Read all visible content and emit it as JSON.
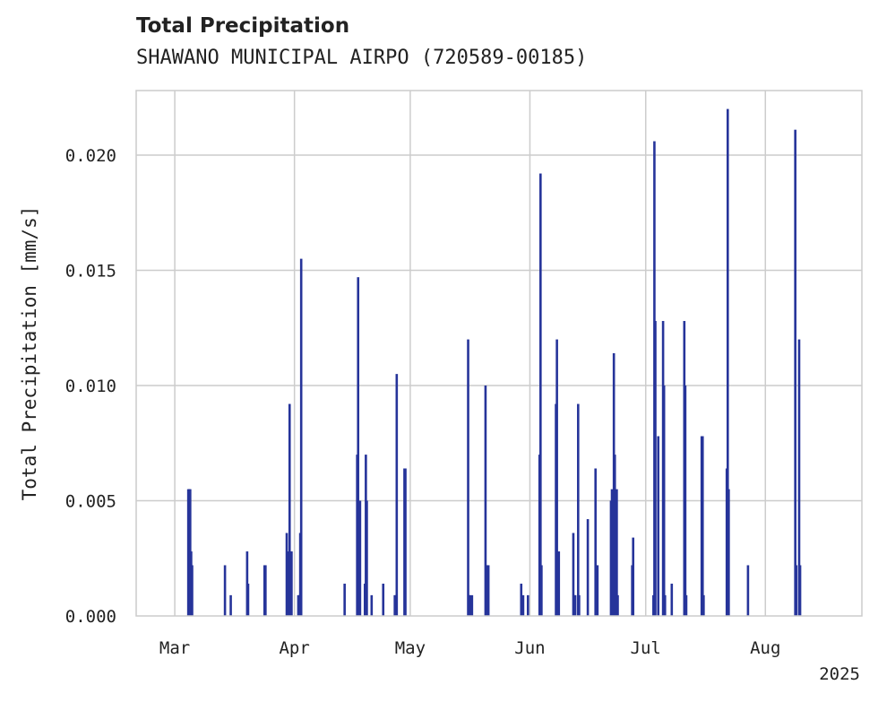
{
  "chart_data": {
    "type": "bar",
    "title": "Total Precipitation",
    "subtitle": "SHAWANO MUNICIPAL AIRPO (720589-00185)",
    "xlabel": "",
    "ylabel": "Total Precipitation [mm/s]",
    "xlim": [
      "2025-02-19",
      "2025-08-26"
    ],
    "ylim": [
      0,
      0.0228
    ],
    "x_ticks": [
      {
        "date": "2025-03-01",
        "label": "Mar"
      },
      {
        "date": "2025-04-01",
        "label": "Apr"
      },
      {
        "date": "2025-05-01",
        "label": "May"
      },
      {
        "date": "2025-06-01",
        "label": "Jun"
      },
      {
        "date": "2025-07-01",
        "label": "Jul"
      },
      {
        "date": "2025-08-01",
        "label": "Aug"
      }
    ],
    "x_offset_label": "2025",
    "y_ticks": [
      {
        "value": 0,
        "label": "0.000"
      },
      {
        "value": 0.005,
        "label": "0.005"
      },
      {
        "value": 0.01,
        "label": "0.010"
      },
      {
        "value": 0.015,
        "label": "0.015"
      },
      {
        "value": 0.02,
        "label": "0.020"
      }
    ],
    "grid": true,
    "bar_color": "#26349a",
    "series": [
      {
        "x": [
          "2025-03-04T12:00",
          "2025-03-04T18:00",
          "2025-03-05T00:00",
          "2025-03-05T06:00",
          "2025-03-05T12:00",
          "2025-03-14T00:00",
          "2025-03-15T12:00",
          "2025-03-19T18:00",
          "2025-03-20T00:00",
          "2025-03-24T06:00",
          "2025-03-24T12:00",
          "2025-03-30T00:00",
          "2025-03-30T06:00",
          "2025-03-30T18:00",
          "2025-03-31T00:00",
          "2025-03-31T06:00",
          "2025-04-02T00:00",
          "2025-04-02T06:00",
          "2025-04-02T12:00",
          "2025-04-02T18:00",
          "2025-04-14T00:00",
          "2025-04-17T06:00",
          "2025-04-17T12:00",
          "2025-04-17T18:00",
          "2025-04-18T00:00",
          "2025-04-19T06:00",
          "2025-04-19T12:00",
          "2025-04-19T18:00",
          "2025-04-21T00:00",
          "2025-04-24T00:00",
          "2025-04-27T00:00",
          "2025-04-27T06:00",
          "2025-04-27T12:00",
          "2025-04-29T12:00",
          "2025-04-29T18:00",
          "2025-05-16T00:00",
          "2025-05-16T06:00",
          "2025-05-16T12:00",
          "2025-05-17T00:00",
          "2025-05-20T12:00",
          "2025-05-20T18:00",
          "2025-05-21T00:00",
          "2025-05-21T06:00",
          "2025-05-29T18:00",
          "2025-05-30T06:00",
          "2025-05-31T12:00",
          "2025-06-03T12:00",
          "2025-06-03T18:00",
          "2025-06-04T00:00",
          "2025-06-07T18:00",
          "2025-06-08T00:00",
          "2025-06-08T06:00",
          "2025-06-08T12:00",
          "2025-06-12T06:00",
          "2025-06-12T12:00",
          "2025-06-12T18:00",
          "2025-06-13T12:00",
          "2025-06-13T18:00",
          "2025-06-16T00:00",
          "2025-06-18T00:00",
          "2025-06-18T06:00",
          "2025-06-18T12:00",
          "2025-06-22T00:00",
          "2025-06-22T06:00",
          "2025-06-22T12:00",
          "2025-06-22T18:00",
          "2025-06-23T00:00",
          "2025-06-23T06:00",
          "2025-06-23T12:00",
          "2025-06-23T18:00",
          "2025-06-27T12:00",
          "2025-06-27T18:00",
          "2025-07-03T00:00",
          "2025-07-03T06:00",
          "2025-07-03T12:00",
          "2025-07-04T06:00",
          "2025-07-05T12:00",
          "2025-07-05T18:00",
          "2025-07-06T00:00",
          "2025-07-07T18:00",
          "2025-07-11T00:00",
          "2025-07-11T06:00",
          "2025-07-11T12:00",
          "2025-07-15T12:00",
          "2025-07-15T18:00",
          "2025-07-16T00:00",
          "2025-07-22T00:00",
          "2025-07-22T06:00",
          "2025-07-22T12:00",
          "2025-07-27T12:00",
          "2025-08-08T18:00",
          "2025-08-09T00:00",
          "2025-08-09T18:00",
          "2025-08-10T00:00"
        ],
        "values": [
          0.0055,
          0.0055,
          0.0055,
          0.0028,
          0.0022,
          0.0022,
          0.0009,
          0.0028,
          0.0014,
          0.0022,
          0.0022,
          0.0036,
          0.0028,
          0.0092,
          0.0028,
          0.0028,
          0.0009,
          0.0009,
          0.0036,
          0.0155,
          0.0014,
          0.007,
          0.0147,
          0.005,
          0.005,
          0.0014,
          0.007,
          0.005,
          0.0009,
          0.0014,
          0.0009,
          0.0009,
          0.0105,
          0.0064,
          0.0064,
          0.012,
          0.0009,
          0.0009,
          0.0009,
          0.01,
          0.0022,
          0.0022,
          0.0022,
          0.0014,
          0.0009,
          0.0009,
          0.007,
          0.0192,
          0.0022,
          0.0092,
          0.012,
          0.0009,
          0.0028,
          0.0036,
          0.0009,
          0.0009,
          0.0092,
          0.0009,
          0.0042,
          0.0064,
          0.0022,
          0.0022,
          0.005,
          0.0055,
          0.0009,
          0.0114,
          0.007,
          0.0009,
          0.0055,
          0.0009,
          0.0022,
          0.0034,
          0.0009,
          0.0206,
          0.0128,
          0.0078,
          0.0128,
          0.01,
          0.0009,
          0.0014,
          0.0128,
          0.01,
          0.0009,
          0.0078,
          0.0078,
          0.0009,
          0.0064,
          0.022,
          0.0055,
          0.0022,
          0.0211,
          0.0022,
          0.012,
          0.0022
        ]
      }
    ]
  }
}
